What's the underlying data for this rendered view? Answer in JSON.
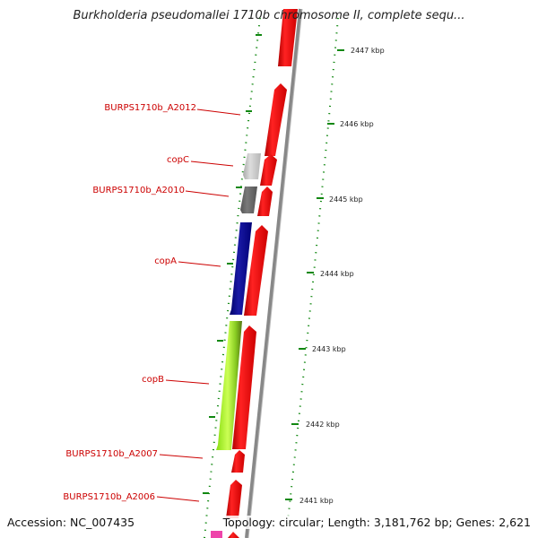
{
  "title": "Burkholderia pseudomallei 1710b chromosome II, complete sequ...",
  "footer": {
    "accession": "Accession: NC_007435",
    "topology": "Topology: circular; Length: 3,181,762 bp; Genes: 2,621"
  },
  "kbp_labels": [
    "2447 kbp",
    "2446 kbp",
    "2445 kbp",
    "2444 kbp",
    "2443 kbp",
    "2442 kbp",
    "2441 kbp"
  ],
  "gene_labels": [
    "BURPS1710b_A2012",
    "copC",
    "BURPS1710b_A2010",
    "copA",
    "copB",
    "BURPS1710b_A2007",
    "BURPS1710b_A2006"
  ],
  "colors": {
    "forward_gene": "#ee1111",
    "reverse_gray_light": "#c0c0c0",
    "reverse_gray_dark": "#666666",
    "reverse_navy": "#0a0a8c",
    "reverse_lime": "#99ee22",
    "tick": "#118811",
    "backbone": "#888888",
    "label": "#cc0000",
    "partial_gene": "#ee44aa"
  }
}
